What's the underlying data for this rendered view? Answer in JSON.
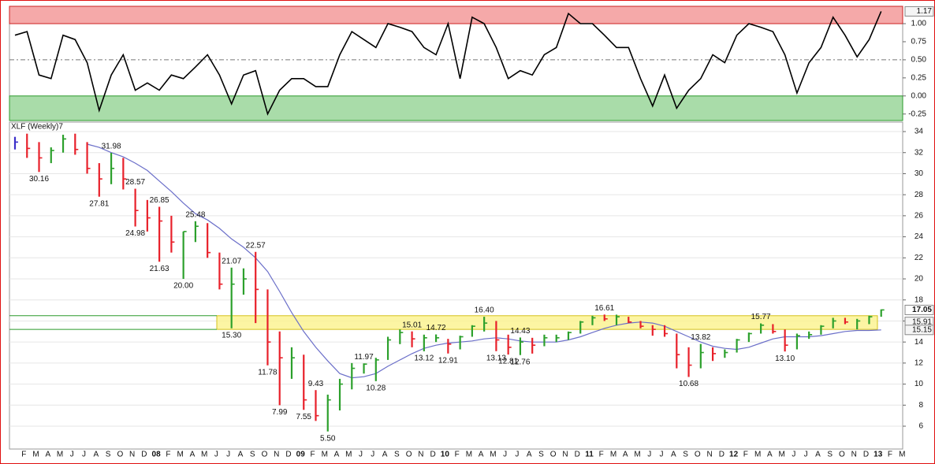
{
  "chart_data": {
    "type": "ohlc",
    "title": "XLF (Weekly)7",
    "categories": [
      null,
      "F",
      "M",
      "A",
      "M",
      "J",
      "J",
      "A",
      "S",
      "O",
      "N",
      "D",
      "08",
      "F",
      "M",
      "A",
      "M",
      "J",
      "J",
      "A",
      "S",
      "O",
      "N",
      "D",
      "09",
      "F",
      "M",
      "A",
      "M",
      "J",
      "J",
      "A",
      "S",
      "O",
      "N",
      "D",
      "10",
      "F",
      "M",
      "A",
      "M",
      "J",
      "J",
      "A",
      "S",
      "O",
      "N",
      "D",
      "11",
      "F",
      "M",
      "A",
      "M",
      "J",
      "J",
      "A",
      "S",
      "O",
      "N",
      "D",
      "12",
      "F",
      "M",
      "A",
      "M",
      "J",
      "J",
      "A",
      "S",
      "O",
      "N",
      "D",
      "13",
      "F",
      "M"
    ],
    "high": [
      33.5,
      33.8,
      33,
      32.5,
      33.7,
      33.8,
      33,
      31,
      31.98,
      31.5,
      28.57,
      27.5,
      26.85,
      26,
      24.5,
      25.48,
      25.3,
      22.5,
      21.07,
      21,
      22.57,
      19,
      15,
      13.5,
      12.8,
      9.43,
      9,
      10.5,
      12,
      11.97,
      12.5,
      14.5,
      15.2,
      15.01,
      14.7,
      14.72,
      14.3,
      14.6,
      15.6,
      16.4,
      16,
      14.7,
      14.43,
      14.4,
      14.7,
      14.7,
      15,
      16,
      16.5,
      16.61,
      16.6,
      16.4,
      16,
      15.6,
      15.6,
      14.8,
      13.5,
      13.82,
      13.5,
      13.3,
      14.3,
      14.9,
      15.77,
      15.7,
      15.2,
      14.8,
      15,
      15.6,
      16.3,
      16.3,
      16.2,
      16.5,
      17.1,
      null,
      null
    ],
    "low": [
      32.3,
      31.5,
      30.16,
      31,
      32,
      31.8,
      30,
      27.81,
      29,
      28.5,
      24.98,
      24.5,
      21.63,
      22.5,
      20,
      23.5,
      22,
      19,
      15.3,
      18.5,
      15.8,
      11.78,
      7.99,
      10.5,
      7.55,
      6.5,
      5.5,
      7.5,
      9.5,
      11,
      10.28,
      12.3,
      13.8,
      13.5,
      13.12,
      14,
      12.91,
      13.3,
      14.5,
      15,
      13.13,
      12.81,
      12.76,
      12.9,
      13.6,
      14,
      14.2,
      14.8,
      15.6,
      16,
      15.6,
      15.8,
      15.3,
      14.6,
      14.5,
      11.5,
      10.68,
      11.5,
      12.2,
      12.5,
      13,
      14,
      14.8,
      14.8,
      13.1,
      13.3,
      14.3,
      14.7,
      15.3,
      15.7,
      15.2,
      15.7,
      16.4,
      null,
      null
    ],
    "close": [
      33,
      32.4,
      31.5,
      32.2,
      33.3,
      32.3,
      30.5,
      29.5,
      30.5,
      29.5,
      26.5,
      25.8,
      25.5,
      23.5,
      24.5,
      25,
      22.5,
      19.5,
      19.5,
      20,
      19,
      14,
      12.5,
      12.5,
      8.5,
      7,
      8.5,
      10,
      11.5,
      11.9,
      12.3,
      14.2,
      14.9,
      14.3,
      14.4,
      14.4,
      13.8,
      14.5,
      15.5,
      15.8,
      14.2,
      13.5,
      14,
      13.7,
      14.4,
      14.4,
      14.9,
      15.9,
      16.3,
      16.2,
      16.4,
      15.9,
      15.5,
      15.2,
      14.8,
      12.8,
      11.8,
      13,
      12.9,
      13,
      14.2,
      14.8,
      15.6,
      15,
      13.7,
      14.6,
      14.7,
      15.5,
      16,
      15.9,
      16,
      16.4,
      17.05,
      null,
      null
    ],
    "high_labels": [
      null,
      null,
      null,
      null,
      null,
      null,
      null,
      null,
      "31.98",
      null,
      "28.57",
      null,
      "26.85",
      null,
      null,
      "25.48",
      null,
      null,
      "21.07",
      null,
      "22.57",
      null,
      null,
      null,
      null,
      "9.43",
      null,
      null,
      null,
      "11.97",
      null,
      null,
      null,
      "15.01",
      null,
      "14.72",
      null,
      null,
      null,
      "16.40",
      null,
      null,
      "14.43",
      null,
      null,
      null,
      null,
      null,
      null,
      "16.61",
      null,
      null,
      null,
      null,
      null,
      null,
      null,
      "13.82",
      null,
      null,
      null,
      null,
      "15.77",
      null,
      null,
      null,
      null,
      null,
      null,
      null,
      null,
      null,
      null,
      null,
      null
    ],
    "low_labels": [
      null,
      null,
      "30.16",
      null,
      null,
      null,
      null,
      "27.81",
      null,
      null,
      "24.98",
      null,
      "21.63",
      null,
      "20.00",
      null,
      null,
      null,
      "15.30",
      null,
      null,
      "11.78",
      "7.99",
      null,
      "7.55",
      null,
      "5.50",
      null,
      null,
      null,
      "10.28",
      null,
      null,
      null,
      "13.12",
      null,
      "12.91",
      null,
      null,
      null,
      "13.13",
      "12.81",
      "12.76",
      null,
      null,
      null,
      null,
      null,
      null,
      null,
      null,
      null,
      null,
      null,
      null,
      null,
      "10.68",
      null,
      null,
      null,
      null,
      null,
      null,
      null,
      "13.10",
      null,
      null,
      null,
      null,
      null,
      null,
      null,
      null,
      null,
      null
    ],
    "colors": {
      "up": "#2ca02c",
      "down": "#e8202a",
      "flat": "#3b2fc9"
    },
    "ma": {
      "color": "#6b6fc9",
      "values": [
        null,
        null,
        null,
        null,
        null,
        null,
        32.8,
        32.5,
        32,
        31.6,
        31,
        30.3,
        29.3,
        28.3,
        27.2,
        26.2,
        25.6,
        24.8,
        23.8,
        23,
        22,
        20.7,
        18.8,
        16.8,
        15,
        13.5,
        12.2,
        11,
        10.6,
        10.7,
        11,
        11.7,
        12.3,
        12.9,
        13.4,
        13.7,
        13.9,
        14,
        14.1,
        14.3,
        14.4,
        14.3,
        14.1,
        14,
        14,
        14,
        14.2,
        14.5,
        14.9,
        15.3,
        15.6,
        15.8,
        15.9,
        15.8,
        15.5,
        15,
        14.5,
        14,
        13.6,
        13.4,
        13.3,
        13.5,
        13.9,
        14.3,
        14.5,
        14.5,
        14.5,
        14.6,
        14.8,
        15,
        15.1,
        15.1,
        15.15,
        null,
        null
      ]
    },
    "reference_values": [
      15.91,
      15.15
    ],
    "highlight_zone": [
      15.2,
      16.5
    ],
    "ylim": [
      3.83,
      34.9
    ],
    "yticks": [
      6,
      8,
      10,
      12,
      14,
      16,
      18,
      20,
      22,
      24,
      26,
      28,
      30,
      32,
      34
    ],
    "grid": true,
    "indicator": {
      "type": "line",
      "color": "#000000",
      "values": [
        0.84,
        0.89,
        0.29,
        0.24,
        0.84,
        0.78,
        0.46,
        -0.2,
        0.29,
        0.57,
        0.08,
        0.18,
        0.08,
        0.29,
        0.24,
        0.4,
        0.57,
        0.29,
        -0.11,
        0.29,
        0.35,
        -0.25,
        0.08,
        0.24,
        0.24,
        0.13,
        0.13,
        0.57,
        0.89,
        0.78,
        0.67,
        1,
        0.95,
        0.89,
        0.67,
        0.57,
        1,
        0.24,
        1.09,
        1,
        0.67,
        0.24,
        0.35,
        0.29,
        0.57,
        0.67,
        1.14,
        1,
        1,
        0.84,
        0.67,
        0.67,
        0.24,
        -0.14,
        0.29,
        -0.17,
        0.08,
        0.24,
        0.57,
        0.46,
        0.84,
        1,
        0.95,
        0.89,
        0.57,
        0.04,
        0.46,
        0.67,
        1.09,
        0.84,
        0.54,
        0.78,
        1.17,
        null,
        null
      ],
      "ylim": [
        -0.34,
        1.24
      ],
      "yticks": [
        {
          "value": 1,
          "label": "1.00"
        },
        {
          "value": 0.75,
          "label": "0.75"
        },
        {
          "value": 0.5,
          "label": "0.50"
        },
        {
          "value": 0.25,
          "label": "0.25"
        },
        {
          "value": 0,
          "label": "0.00"
        },
        {
          "value": -0.25,
          "label": "-0.25"
        }
      ],
      "dashed_level": 0.5,
      "zones": [
        {
          "from": 1,
          "to": 1.24,
          "color": "#f5a9a9",
          "edge": "#cc2020"
        },
        {
          "from": 0,
          "to": -0.34,
          "color": "#a9dca9",
          "edge": "#2a9a2a"
        }
      ]
    }
  }
}
